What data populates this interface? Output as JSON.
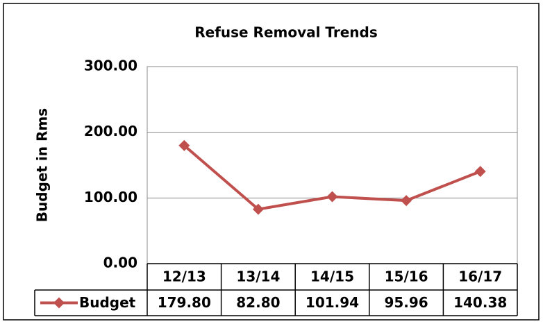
{
  "chart_data": {
    "type": "line",
    "title": "Refuse Removal Trends",
    "y_label": "Budget in Rms",
    "categories": [
      "12/13",
      "13/14",
      "14/15",
      "15/16",
      "16/17"
    ],
    "series": [
      {
        "name": "Budget",
        "color": "#c0504d",
        "values": [
          179.8,
          82.8,
          101.94,
          95.96,
          140.38
        ],
        "value_labels": [
          "179.80",
          "82.80",
          "101.94",
          "95.96",
          "140.38"
        ]
      }
    ],
    "ylim": [
      0,
      300
    ],
    "yticks": [
      {
        "value": 0,
        "label": "0.00"
      },
      {
        "value": 100,
        "label": "100.00"
      },
      {
        "value": 200,
        "label": "200.00"
      },
      {
        "value": 300,
        "label": "300.00"
      }
    ],
    "grid": true
  }
}
